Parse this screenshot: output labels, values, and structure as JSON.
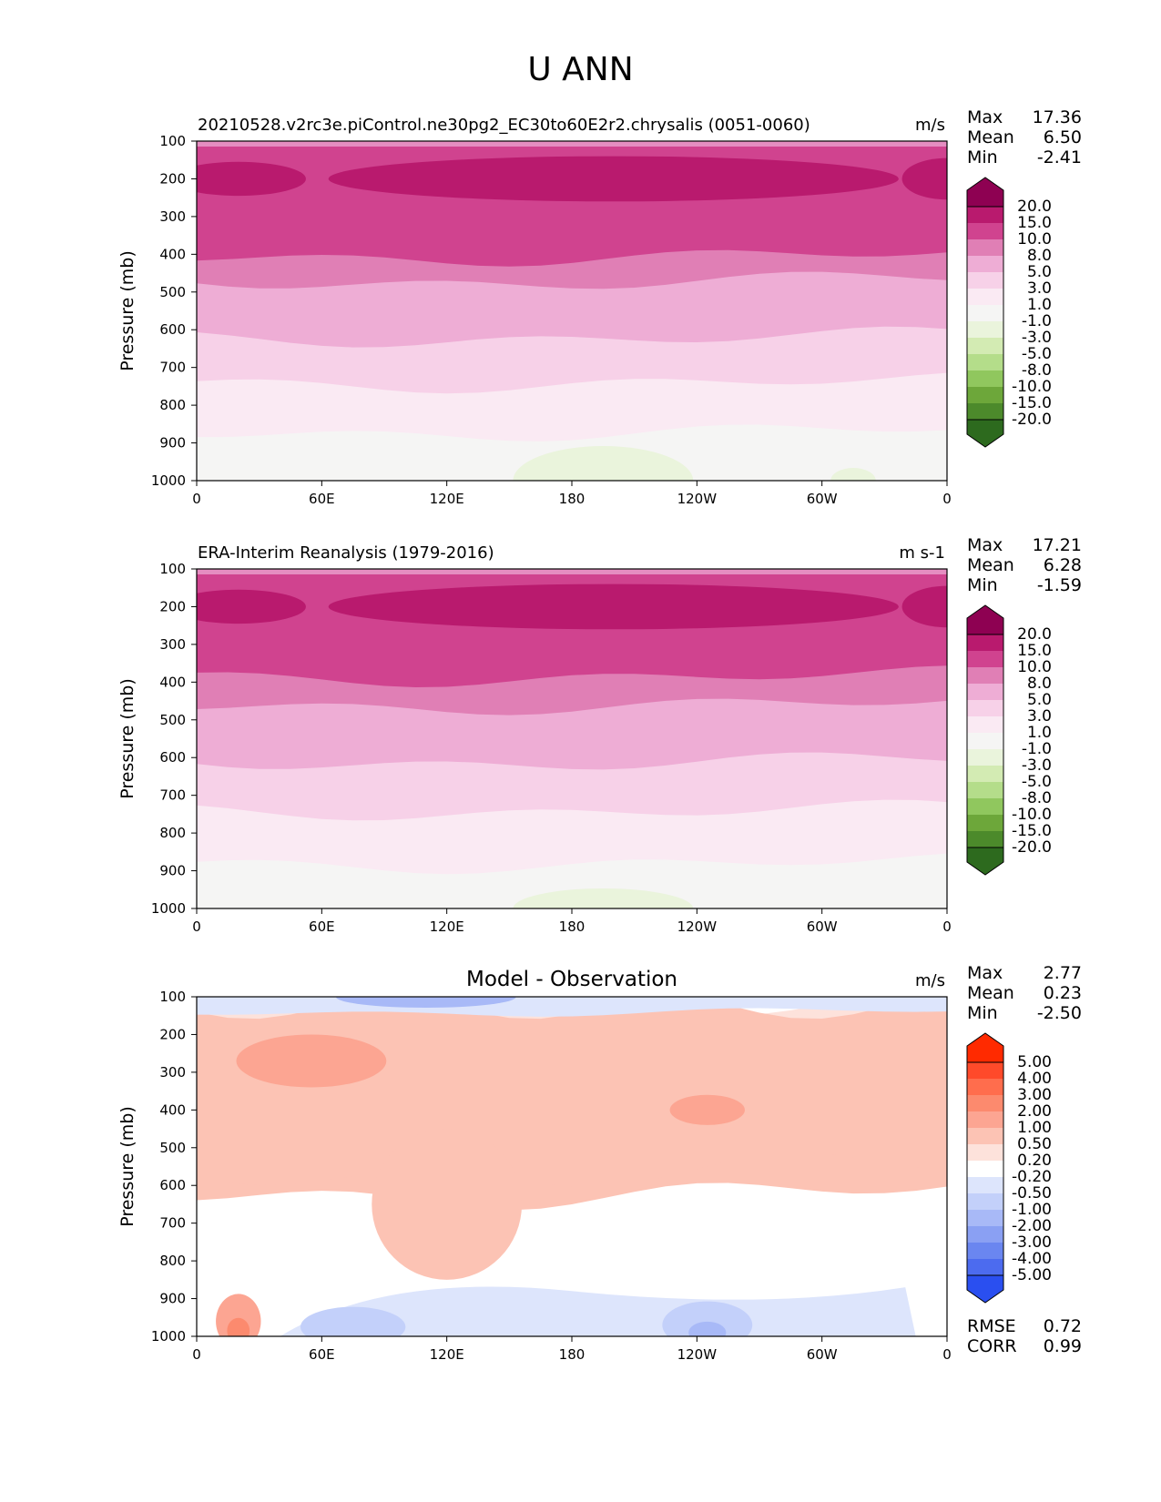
{
  "figure_title": "U ANN",
  "chart_data": [
    {
      "type": "heatmap",
      "title": "20210528.v2rc3e.piControl.ne30pg2_EC30to60E2r2.chrysalis (0051-0060)",
      "units": "m/s",
      "ylabel": "Pressure (mb)",
      "ylim": [
        1000,
        100
      ],
      "yticks": [
        "100",
        "200",
        "300",
        "400",
        "500",
        "600",
        "700",
        "800",
        "900",
        "1000"
      ],
      "xticks": [
        "0",
        "60E",
        "120E",
        "180",
        "120W",
        "60W",
        "0"
      ],
      "stats": [
        {
          "label": "Max",
          "value": "17.36"
        },
        {
          "label": "Mean",
          "value": "6.50"
        },
        {
          "label": "Min",
          "value": "-2.41"
        }
      ],
      "colorbar": {
        "levels": [
          "20.0",
          "15.0",
          "10.0",
          "8.0",
          "5.0",
          "3.0",
          "1.0",
          "-1.0",
          "-3.0",
          "-5.0",
          "-8.0",
          "-10.0",
          "-15.0",
          "-20.0"
        ],
        "colors": [
          "#8e0152",
          "#b91a6e",
          "#d0438f",
          "#e07fb5",
          "#eeadd5",
          "#f7d1e8",
          "#faeaf3",
          "#f5f5f4",
          "#eaf4dc",
          "#d3ebb3",
          "#b4dd8a",
          "#90c75e",
          "#6da73a",
          "#4c8a2b",
          "#2d6a1e"
        ]
      },
      "bands": [
        {
          "level": "> 15",
          "p_top": 100,
          "p_bottom": 260
        },
        {
          "level": "10 to 15",
          "p_top": 100,
          "p_bottom": 405
        },
        {
          "level": "8 to 10",
          "p_top": 405,
          "p_bottom": 470
        },
        {
          "level": "5 to 8",
          "p_top": 470,
          "p_bottom": 620
        },
        {
          "level": "3 to 5",
          "p_top": 620,
          "p_bottom": 740
        },
        {
          "level": "1 to 3",
          "p_top": 740,
          "p_bottom": 870
        },
        {
          "level": "-1 to 1",
          "p_top": 870,
          "p_bottom": 1000
        }
      ]
    },
    {
      "type": "heatmap",
      "title": "ERA-Interim Reanalysis (1979-2016)",
      "units": "m s-1",
      "ylabel": "Pressure (mb)",
      "ylim": [
        1000,
        100
      ],
      "yticks": [
        "100",
        "200",
        "300",
        "400",
        "500",
        "600",
        "700",
        "800",
        "900",
        "1000"
      ],
      "xticks": [
        "0",
        "60E",
        "120E",
        "180",
        "120W",
        "60W",
        "0"
      ],
      "stats": [
        {
          "label": "Max",
          "value": "17.21"
        },
        {
          "label": "Mean",
          "value": "6.28"
        },
        {
          "label": "Min",
          "value": "-1.59"
        }
      ],
      "colorbar": {
        "levels": [
          "20.0",
          "15.0",
          "10.0",
          "8.0",
          "5.0",
          "3.0",
          "1.0",
          "-1.0",
          "-3.0",
          "-5.0",
          "-8.0",
          "-10.0",
          "-15.0",
          "-20.0"
        ],
        "colors": [
          "#8e0152",
          "#b91a6e",
          "#d0438f",
          "#e07fb5",
          "#eeadd5",
          "#f7d1e8",
          "#faeaf3",
          "#f5f5f4",
          "#eaf4dc",
          "#d3ebb3",
          "#b4dd8a",
          "#90c75e",
          "#6da73a",
          "#4c8a2b",
          "#2d6a1e"
        ]
      },
      "bands": [
        {
          "level": "> 15",
          "p_top": 100,
          "p_bottom": 260
        },
        {
          "level": "10 to 15",
          "p_top": 100,
          "p_bottom": 385
        },
        {
          "level": "8 to 10",
          "p_top": 385,
          "p_bottom": 460
        },
        {
          "level": "5 to 8",
          "p_top": 460,
          "p_bottom": 610
        },
        {
          "level": "3 to 5",
          "p_top": 610,
          "p_bottom": 740
        },
        {
          "level": "1 to 3",
          "p_top": 740,
          "p_bottom": 880
        },
        {
          "level": "-1 to 1",
          "p_top": 880,
          "p_bottom": 1000
        }
      ]
    },
    {
      "type": "heatmap",
      "title": "Model - Observation",
      "units": "m/s",
      "ylabel": "Pressure (mb)",
      "ylim": [
        1000,
        100
      ],
      "yticks": [
        "100",
        "200",
        "300",
        "400",
        "500",
        "600",
        "700",
        "800",
        "900",
        "1000"
      ],
      "xticks": [
        "0",
        "60E",
        "120E",
        "180",
        "120W",
        "60W",
        "0"
      ],
      "stats": [
        {
          "label": "Max",
          "value": "2.77"
        },
        {
          "label": "Mean",
          "value": "0.23"
        },
        {
          "label": "Min",
          "value": "-2.50"
        }
      ],
      "extra_stats": [
        {
          "label": "RMSE",
          "value": "0.72"
        },
        {
          "label": "CORR",
          "value": "0.99"
        }
      ],
      "colorbar": {
        "levels": [
          "5.00",
          "4.00",
          "3.00",
          "2.00",
          "1.00",
          "0.50",
          "0.20",
          "-0.20",
          "-0.50",
          "-1.00",
          "-2.00",
          "-3.00",
          "-4.00",
          "-5.00"
        ],
        "colors": [
          "#ff2a00",
          "#ff4a2a",
          "#ff6d4d",
          "#fc8a6e",
          "#fca592",
          "#fcc3b4",
          "#fde2db",
          "#ffffff",
          "#dde5fc",
          "#c3d0fa",
          "#a8b9f7",
          "#8aa0f3",
          "#6a86f0",
          "#4c6bef",
          "#2a4ff0"
        ]
      },
      "bands": [
        {
          "level": "-0.2 to 0.2",
          "p_top": 100,
          "p_bottom": 1000
        },
        {
          "level": "0.5 to 1",
          "p_top": 130,
          "p_bottom": 620
        },
        {
          "level": "1 to 2",
          "p_top": 190,
          "p_bottom": 330
        },
        {
          "level": "-0.5 to -0.2",
          "p_top": 100,
          "p_bottom": 140
        },
        {
          "level": "-1 to -0.5",
          "p_top": 860,
          "p_bottom": 1000
        }
      ]
    }
  ]
}
